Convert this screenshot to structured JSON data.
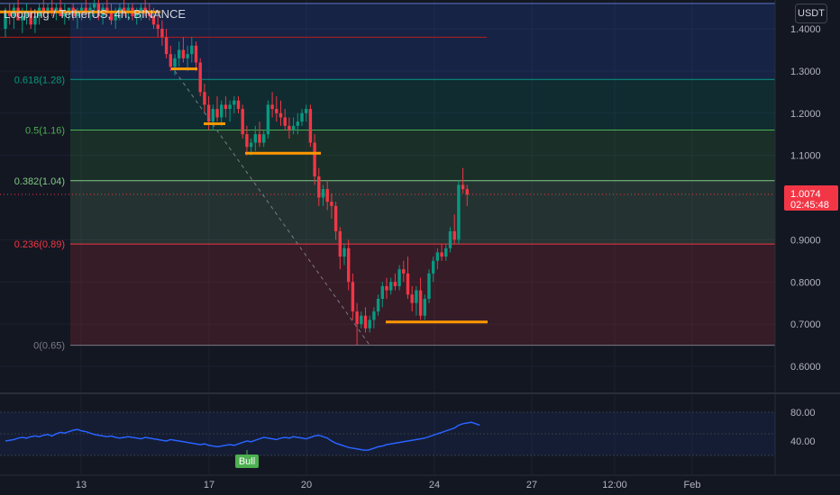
{
  "header": {
    "symbol": "Loopring / TetherUS",
    "interval": "4h",
    "exchange": "BINANCE",
    "title_text": "Loopring / TetherUS, 4h, BINANCE"
  },
  "currency_button": "USDT",
  "price_axis": {
    "ticks": [
      "1.4000",
      "1.3000",
      "1.2000",
      "1.1000",
      "0.9000",
      "0.8000",
      "0.7000",
      "0.6000"
    ],
    "tick_values": [
      1.4,
      1.3,
      1.2,
      1.1,
      0.9,
      0.8,
      0.7,
      0.6
    ],
    "current_price": "1.0074",
    "countdown": "02:45:48",
    "current_price_color": "#f23645"
  },
  "time_axis": {
    "labels": [
      "13",
      "17",
      "20",
      "24",
      "27",
      "12:00",
      "Feb"
    ]
  },
  "fib_levels": [
    {
      "label": "0.618(1.28)",
      "value": 1.28,
      "color": "#089981"
    },
    {
      "label": "0.5(1.16)",
      "value": 1.16,
      "color": "#4caf50"
    },
    {
      "label": "0.382(1.04)",
      "value": 1.04,
      "color": "#81c784"
    },
    {
      "label": "0.236(0.89)",
      "value": 0.89,
      "color": "#f23645"
    },
    {
      "label": "0(0.65)",
      "value": 0.65,
      "color": "#787b86"
    }
  ],
  "rsi_panel": {
    "ticks": [
      "80.00",
      "40.00"
    ],
    "tick_values": [
      80,
      40
    ],
    "label": "Bull",
    "line_color": "#2962ff",
    "label_color": "#4caf50"
  },
  "colors": {
    "up": "#089981",
    "down": "#f23645",
    "level_marker": "#ff9800",
    "background": "#131722"
  },
  "chart_data": {
    "type": "candlestick",
    "title": "Loopring / TetherUS, 4h, BINANCE",
    "y_range": [
      0.57,
      1.47
    ],
    "candles_ohlc": [
      [
        1.4,
        1.45,
        1.38,
        1.44
      ],
      [
        1.44,
        1.46,
        1.41,
        1.43
      ],
      [
        1.43,
        1.46,
        1.4,
        1.45
      ],
      [
        1.45,
        1.47,
        1.42,
        1.42
      ],
      [
        1.42,
        1.45,
        1.39,
        1.43
      ],
      [
        1.43,
        1.46,
        1.41,
        1.44
      ],
      [
        1.44,
        1.45,
        1.4,
        1.41
      ],
      [
        1.41,
        1.44,
        1.39,
        1.43
      ],
      [
        1.43,
        1.46,
        1.41,
        1.45
      ],
      [
        1.45,
        1.47,
        1.43,
        1.44
      ],
      [
        1.44,
        1.46,
        1.42,
        1.45
      ],
      [
        1.45,
        1.47,
        1.43,
        1.44
      ],
      [
        1.44,
        1.46,
        1.42,
        1.45
      ],
      [
        1.45,
        1.47,
        1.43,
        1.43
      ],
      [
        1.43,
        1.46,
        1.41,
        1.44
      ],
      [
        1.44,
        1.45,
        1.42,
        1.45
      ],
      [
        1.45,
        1.46,
        1.42,
        1.43
      ],
      [
        1.43,
        1.45,
        1.4,
        1.44
      ],
      [
        1.44,
        1.46,
        1.42,
        1.45
      ],
      [
        1.45,
        1.47,
        1.43,
        1.44
      ],
      [
        1.44,
        1.46,
        1.42,
        1.45
      ],
      [
        1.45,
        1.47,
        1.43,
        1.46
      ],
      [
        1.46,
        1.47,
        1.42,
        1.43
      ],
      [
        1.43,
        1.46,
        1.41,
        1.45
      ],
      [
        1.45,
        1.47,
        1.43,
        1.44
      ],
      [
        1.44,
        1.46,
        1.41,
        1.42
      ],
      [
        1.42,
        1.45,
        1.4,
        1.44
      ],
      [
        1.44,
        1.46,
        1.42,
        1.45
      ],
      [
        1.45,
        1.47,
        1.43,
        1.44
      ],
      [
        1.44,
        1.46,
        1.42,
        1.45
      ],
      [
        1.45,
        1.46,
        1.42,
        1.43
      ],
      [
        1.43,
        1.45,
        1.41,
        1.44
      ],
      [
        1.44,
        1.46,
        1.42,
        1.45
      ],
      [
        1.45,
        1.47,
        1.43,
        1.44
      ],
      [
        1.44,
        1.46,
        1.42,
        1.43
      ],
      [
        1.43,
        1.45,
        1.4,
        1.41
      ],
      [
        1.41,
        1.43,
        1.38,
        1.4
      ],
      [
        1.4,
        1.42,
        1.36,
        1.38
      ],
      [
        1.38,
        1.4,
        1.33,
        1.34
      ],
      [
        1.34,
        1.36,
        1.3,
        1.31
      ],
      [
        1.31,
        1.34,
        1.29,
        1.33
      ],
      [
        1.33,
        1.37,
        1.31,
        1.35
      ],
      [
        1.35,
        1.38,
        1.32,
        1.33
      ],
      [
        1.33,
        1.36,
        1.3,
        1.34
      ],
      [
        1.34,
        1.38,
        1.32,
        1.36
      ],
      [
        1.36,
        1.37,
        1.3,
        1.32
      ],
      [
        1.32,
        1.33,
        1.24,
        1.25
      ],
      [
        1.25,
        1.27,
        1.2,
        1.22
      ],
      [
        1.22,
        1.24,
        1.16,
        1.18
      ],
      [
        1.18,
        1.22,
        1.16,
        1.21
      ],
      [
        1.21,
        1.24,
        1.18,
        1.19
      ],
      [
        1.19,
        1.23,
        1.17,
        1.22
      ],
      [
        1.22,
        1.24,
        1.19,
        1.21
      ],
      [
        1.21,
        1.23,
        1.18,
        1.22
      ],
      [
        1.22,
        1.24,
        1.2,
        1.23
      ],
      [
        1.23,
        1.24,
        1.2,
        1.21
      ],
      [
        1.21,
        1.22,
        1.14,
        1.15
      ],
      [
        1.15,
        1.17,
        1.1,
        1.12
      ],
      [
        1.12,
        1.14,
        1.1,
        1.13
      ],
      [
        1.13,
        1.17,
        1.11,
        1.15
      ],
      [
        1.15,
        1.18,
        1.12,
        1.13
      ],
      [
        1.13,
        1.16,
        1.12,
        1.15
      ],
      [
        1.15,
        1.23,
        1.14,
        1.22
      ],
      [
        1.22,
        1.25,
        1.19,
        1.21
      ],
      [
        1.21,
        1.24,
        1.18,
        1.2
      ],
      [
        1.2,
        1.23,
        1.17,
        1.19
      ],
      [
        1.19,
        1.21,
        1.16,
        1.17
      ],
      [
        1.17,
        1.19,
        1.14,
        1.16
      ],
      [
        1.16,
        1.19,
        1.15,
        1.17
      ],
      [
        1.17,
        1.2,
        1.15,
        1.18
      ],
      [
        1.18,
        1.21,
        1.17,
        1.2
      ],
      [
        1.2,
        1.22,
        1.18,
        1.21
      ],
      [
        1.21,
        1.22,
        1.12,
        1.13
      ],
      [
        1.13,
        1.15,
        1.03,
        1.05
      ],
      [
        1.05,
        1.07,
        0.98,
        1.0
      ],
      [
        1.0,
        1.03,
        0.98,
        1.02
      ],
      [
        1.02,
        1.04,
        0.97,
        0.99
      ],
      [
        0.99,
        1.01,
        0.95,
        0.98
      ],
      [
        0.98,
        0.99,
        0.9,
        0.92
      ],
      [
        0.92,
        0.93,
        0.83,
        0.86
      ],
      [
        0.86,
        0.89,
        0.84,
        0.88
      ],
      [
        0.88,
        0.9,
        0.78,
        0.8
      ],
      [
        0.8,
        0.82,
        0.71,
        0.73
      ],
      [
        0.73,
        0.75,
        0.65,
        0.7
      ],
      [
        0.7,
        0.73,
        0.69,
        0.72
      ],
      [
        0.72,
        0.74,
        0.68,
        0.69
      ],
      [
        0.69,
        0.72,
        0.68,
        0.71
      ],
      [
        0.71,
        0.74,
        0.69,
        0.73
      ],
      [
        0.73,
        0.77,
        0.72,
        0.76
      ],
      [
        0.76,
        0.8,
        0.74,
        0.79
      ],
      [
        0.79,
        0.81,
        0.76,
        0.78
      ],
      [
        0.78,
        0.81,
        0.77,
        0.8
      ],
      [
        0.8,
        0.82,
        0.78,
        0.79
      ],
      [
        0.79,
        0.84,
        0.78,
        0.83
      ],
      [
        0.83,
        0.85,
        0.8,
        0.82
      ],
      [
        0.82,
        0.86,
        0.76,
        0.77
      ],
      [
        0.77,
        0.79,
        0.73,
        0.75
      ],
      [
        0.75,
        0.79,
        0.72,
        0.78
      ],
      [
        0.78,
        0.81,
        0.71,
        0.72
      ],
      [
        0.72,
        0.77,
        0.71,
        0.76
      ],
      [
        0.76,
        0.83,
        0.75,
        0.82
      ],
      [
        0.82,
        0.86,
        0.8,
        0.85
      ],
      [
        0.85,
        0.88,
        0.83,
        0.87
      ],
      [
        0.87,
        0.89,
        0.85,
        0.86
      ],
      [
        0.86,
        0.89,
        0.85,
        0.88
      ],
      [
        0.88,
        0.93,
        0.87,
        0.92
      ],
      [
        0.92,
        0.96,
        0.89,
        0.9
      ],
      [
        0.9,
        1.04,
        0.89,
        1.03
      ],
      [
        1.03,
        1.07,
        1.01,
        1.02
      ],
      [
        1.02,
        1.03,
        0.98,
        1.0074
      ]
    ],
    "horizontal_levels": [
      {
        "value": 1.38,
        "color": "#b71c1c"
      }
    ],
    "orange_segments": [
      {
        "value": 1.44
      },
      {
        "value": 1.305
      },
      {
        "value": 1.175
      },
      {
        "value": 1.105
      },
      {
        "value": 0.705
      }
    ],
    "trendline": {
      "from_value": 1.3,
      "to_value": 0.65
    },
    "rsi_values": [
      40,
      41,
      42,
      44,
      45,
      44,
      46,
      47,
      46,
      48,
      49,
      47,
      50,
      52,
      51,
      53,
      55,
      56,
      54,
      53,
      51,
      49,
      48,
      47,
      46,
      47,
      45,
      44,
      45,
      46,
      45,
      44,
      43,
      45,
      44,
      43,
      42,
      41,
      40,
      42,
      41,
      40,
      39,
      38,
      37,
      36,
      35,
      36,
      34,
      33,
      32,
      33,
      34,
      35,
      34,
      36,
      38,
      40,
      39,
      41,
      43,
      45,
      44,
      43,
      42,
      44,
      45,
      44,
      46,
      45,
      44,
      43,
      45,
      47,
      48,
      46,
      44,
      40,
      37,
      35,
      33,
      31,
      30,
      29,
      28,
      27,
      28,
      30,
      32,
      33,
      35,
      36,
      37,
      38,
      39,
      40,
      41,
      42,
      43,
      44,
      46,
      48,
      50,
      52,
      54,
      56,
      58,
      62,
      64,
      65,
      66,
      64,
      62
    ]
  }
}
